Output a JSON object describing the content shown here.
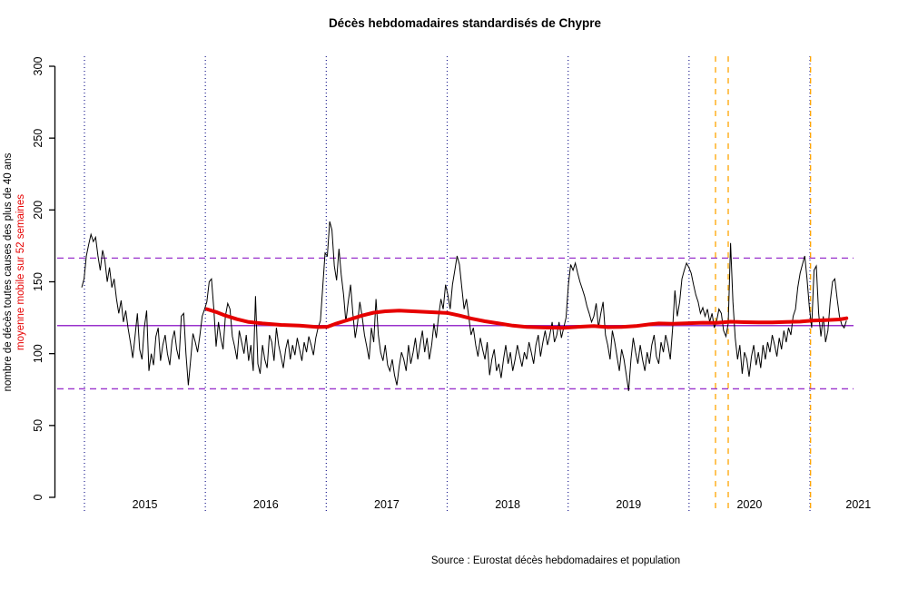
{
  "chart_data": {
    "type": "line",
    "title": "Décès hebdomadaires standardisés de Chypre",
    "ylabel": "nombre de décès toutes causes des plus de 40 ans",
    "ylabel2": "moyenne mobile sur 52 semaines",
    "source": "Source : Eurostat décès hebdomadaires et population",
    "colors": {
      "weekly_series": "#000000",
      "moving_average": "#e60000",
      "year_gridline": "#1f1f8f",
      "event_line": "#FFA500",
      "reference_line": "#9932CC",
      "text": "#000000"
    },
    "y_axis": {
      "ticks": [
        0,
        50,
        100,
        150,
        200,
        250,
        300
      ],
      "range": [
        0,
        300
      ]
    },
    "x_axis": {
      "year_gridlines": [
        2015,
        2016,
        2017,
        2018,
        2019,
        2020,
        2021
      ],
      "year_labels": [
        {
          "label": "2015",
          "x": 2015.5
        },
        {
          "label": "2016",
          "x": 2016.5
        },
        {
          "label": "2017",
          "x": 2017.5
        },
        {
          "label": "2018",
          "x": 2018.5
        },
        {
          "label": "2019",
          "x": 2019.5
        },
        {
          "label": "2020",
          "x": 2020.5
        },
        {
          "label": "2021",
          "x": 2021.4
        }
      ]
    },
    "reference_lines": {
      "mean": 119.5,
      "upper_band": 166.5,
      "lower_band": 75.5
    },
    "event_lines": [
      {
        "x": 2020.219,
        "style": "dashed"
      },
      {
        "x": 2020.324,
        "style": "dashed"
      },
      {
        "x": 2021.005,
        "style": "dashed"
      }
    ],
    "series": [
      {
        "name": "décès hebdomadaires toutes causes des plus de 40 ans",
        "start_year": 2014.9775,
        "points_per_year": 52.18,
        "values": [
          146,
          152,
          168,
          176,
          183,
          178,
          181,
          168,
          158,
          172,
          165,
          150,
          160,
          146,
          152,
          138,
          128,
          137,
          122,
          130,
          118,
          108,
          97,
          112,
          128,
          103,
          96,
          118,
          130,
          88,
          100,
          92,
          112,
          118,
          95,
          106,
          113,
          100,
          92,
          109,
          116,
          103,
          96,
          126,
          128,
          100,
          78,
          96,
          114,
          108,
          101,
          113,
          126,
          131,
          136,
          150,
          152,
          131,
          105,
          122,
          111,
          103,
          126,
          135,
          131,
          112,
          105,
          96,
          116,
          108,
          100,
          113,
          95,
          106,
          88,
          140,
          93,
          86,
          106,
          96,
          90,
          113,
          108,
          95,
          118,
          106,
          98,
          90,
          103,
          110,
          96,
          106,
          99,
          111,
          103,
          95,
          108,
          101,
          112,
          106,
          99,
          111,
          118,
          123,
          146,
          170,
          168,
          192,
          186,
          161,
          151,
          173,
          155,
          141,
          122,
          136,
          148,
          128,
          111,
          121,
          136,
          126,
          113,
          105,
          96,
          118,
          108,
          138,
          113,
          101,
          95,
          106,
          92,
          88,
          96,
          85,
          78,
          91,
          101,
          96,
          88,
          106,
          93,
          101,
          111,
          96,
          106,
          116,
          101,
          111,
          96,
          106,
          121,
          111,
          126,
          138,
          131,
          148,
          141,
          131,
          148,
          158,
          168,
          162,
          146,
          131,
          138,
          126,
          113,
          118,
          106,
          98,
          111,
          103,
          96,
          108,
          85,
          96,
          103,
          88,
          93,
          83,
          96,
          106,
          93,
          101,
          88,
          96,
          106,
          98,
          91,
          101,
          96,
          108,
          101,
          93,
          106,
          113,
          98,
          108,
          116,
          106,
          113,
          122,
          108,
          113,
          122,
          111,
          118,
          125,
          148,
          162,
          158,
          163,
          156,
          150,
          145,
          140,
          133,
          128,
          122,
          126,
          135,
          118,
          128,
          136,
          113,
          106,
          96,
          116,
          108,
          98,
          88,
          103,
          96,
          85,
          74,
          96,
          111,
          101,
          93,
          106,
          96,
          88,
          101,
          93,
          106,
          113,
          98,
          93,
          108,
          101,
          113,
          106,
          96,
          118,
          144,
          126,
          136,
          152,
          158,
          163,
          160,
          156,
          148,
          141,
          136,
          128,
          132,
          126,
          131,
          122,
          128,
          118,
          123,
          131,
          128,
          116,
          112,
          121,
          177,
          136,
          111,
          96,
          106,
          86,
          101,
          96,
          84,
          98,
          106,
          92,
          101,
          90,
          106,
          96,
          108,
          101,
          113,
          106,
          98,
          111,
          103,
          116,
          108,
          118,
          113,
          126,
          131,
          146,
          156,
          162,
          168,
          152,
          132,
          118,
          158,
          161,
          128,
          112,
          126,
          108,
          116,
          136,
          150,
          152,
          138,
          126,
          120,
          118,
          123
        ]
      },
      {
        "name": "moyenne mobile sur 52 semaines",
        "keypoints": [
          [
            54,
            131
          ],
          [
            58,
            129
          ],
          [
            62,
            126.5
          ],
          [
            67,
            124
          ],
          [
            72,
            122
          ],
          [
            78,
            121
          ],
          [
            86,
            120
          ],
          [
            94,
            119.5
          ],
          [
            102,
            118.5
          ],
          [
            106,
            118.7
          ],
          [
            110,
            121
          ],
          [
            116,
            124
          ],
          [
            121,
            126.5
          ],
          [
            126,
            128.5
          ],
          [
            131,
            129.5
          ],
          [
            137,
            130
          ],
          [
            143,
            129.5
          ],
          [
            149,
            129
          ],
          [
            153,
            128.7
          ],
          [
            158,
            128.3
          ],
          [
            163,
            126.5
          ],
          [
            168,
            124.5
          ],
          [
            174,
            122.5
          ],
          [
            180,
            121
          ],
          [
            186,
            119.5
          ],
          [
            192,
            118.6
          ],
          [
            200,
            118.2
          ],
          [
            208,
            118
          ],
          [
            216,
            118.8
          ],
          [
            221,
            119.2
          ],
          [
            227,
            118.4
          ],
          [
            233,
            118.6
          ],
          [
            239,
            119.2
          ],
          [
            245,
            120.4
          ],
          [
            249,
            121
          ],
          [
            255,
            120.8
          ],
          [
            262,
            121.2
          ],
          [
            268,
            121.5
          ],
          [
            274,
            121.4
          ],
          [
            280,
            122.2
          ],
          [
            286,
            121.9
          ],
          [
            292,
            121.7
          ],
          [
            298,
            121.8
          ],
          [
            304,
            122
          ],
          [
            310,
            122.3
          ],
          [
            315,
            123
          ],
          [
            321,
            123.3
          ],
          [
            327,
            123.8
          ],
          [
            330,
            124.6
          ]
        ]
      }
    ]
  }
}
